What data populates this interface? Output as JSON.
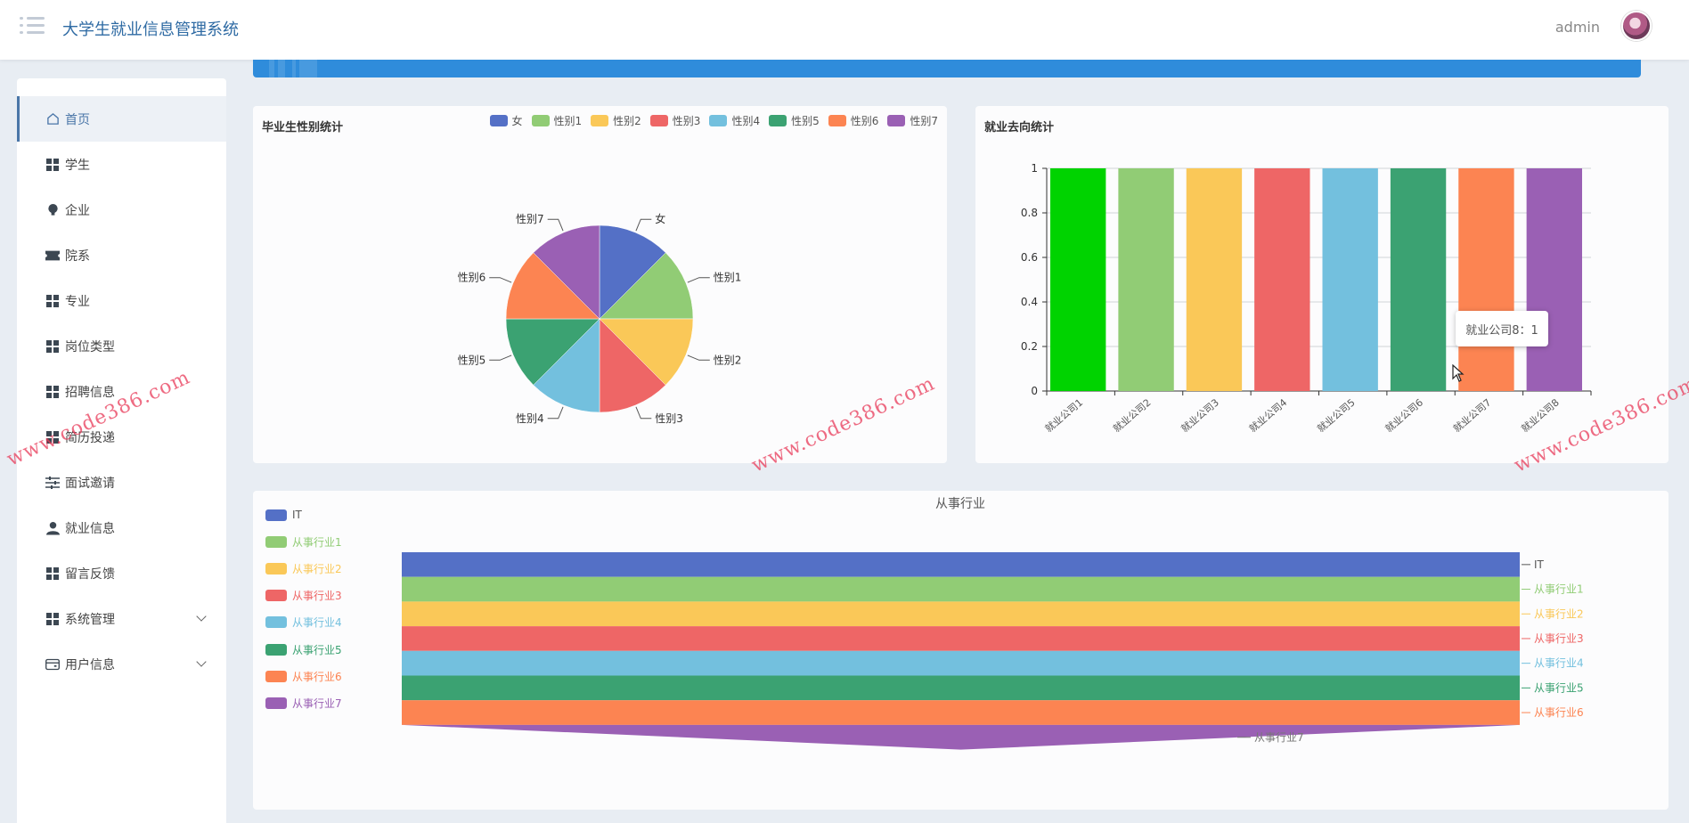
{
  "header": {
    "app_title": "大学生就业信息管理系统",
    "user_name": "admin"
  },
  "sidebar": {
    "items": [
      {
        "label": "首页",
        "icon": "home-icon",
        "active": true
      },
      {
        "label": "学生",
        "icon": "grid-icon"
      },
      {
        "label": "企业",
        "icon": "bulb-icon"
      },
      {
        "label": "院系",
        "icon": "ticket-icon"
      },
      {
        "label": "专业",
        "icon": "grid-icon"
      },
      {
        "label": "岗位类型",
        "icon": "grid-icon"
      },
      {
        "label": "招聘信息",
        "icon": "grid-icon"
      },
      {
        "label": "简历投递",
        "icon": "grid-icon"
      },
      {
        "label": "面试邀请",
        "icon": "sliders-icon"
      },
      {
        "label": "就业信息",
        "icon": "user-icon"
      },
      {
        "label": "留言反馈",
        "icon": "grid-icon"
      },
      {
        "label": "系统管理",
        "icon": "grid-icon",
        "expandable": true
      },
      {
        "label": "用户信息",
        "icon": "card-icon",
        "expandable": true
      }
    ]
  },
  "colors": {
    "palette": [
      "#5470c6",
      "#91cc75",
      "#fac858",
      "#ee6666",
      "#73c0de",
      "#3ba272",
      "#fc8452",
      "#9a60b4"
    ],
    "bar_first": "#00d300",
    "banner": "#2f8cdb",
    "accent": "#4a76a8"
  },
  "gender_chart": {
    "title": "毕业生性别统计",
    "chart_data": {
      "type": "pie",
      "labels": [
        "女",
        "性别1",
        "性别2",
        "性别3",
        "性别4",
        "性别5",
        "性别6",
        "性别7"
      ],
      "values": [
        1,
        1,
        1,
        1,
        1,
        1,
        1,
        1
      ]
    }
  },
  "employment_chart": {
    "title": "就业去向统计",
    "tooltip": "就业公司8：1",
    "chart_data": {
      "type": "bar",
      "categories": [
        "就业公司1",
        "就业公司2",
        "就业公司3",
        "就业公司4",
        "就业公司5",
        "就业公司6",
        "就业公司7",
        "就业公司8"
      ],
      "values": [
        1,
        1,
        1,
        1,
        1,
        1,
        1,
        1
      ],
      "ylim": [
        0,
        1
      ],
      "yticks": [
        "0",
        "0.2",
        "0.4",
        "0.6",
        "0.8",
        "1"
      ]
    }
  },
  "industry_chart": {
    "title": "从事行业",
    "chart_data": {
      "type": "funnel",
      "labels": [
        "IT",
        "从事行业1",
        "从事行业2",
        "从事行业3",
        "从事行业4",
        "从事行业5",
        "从事行业6",
        "从事行业7"
      ],
      "values": [
        1,
        1,
        1,
        1,
        1,
        1,
        1,
        1
      ]
    }
  },
  "watermark": "www.code386.com"
}
